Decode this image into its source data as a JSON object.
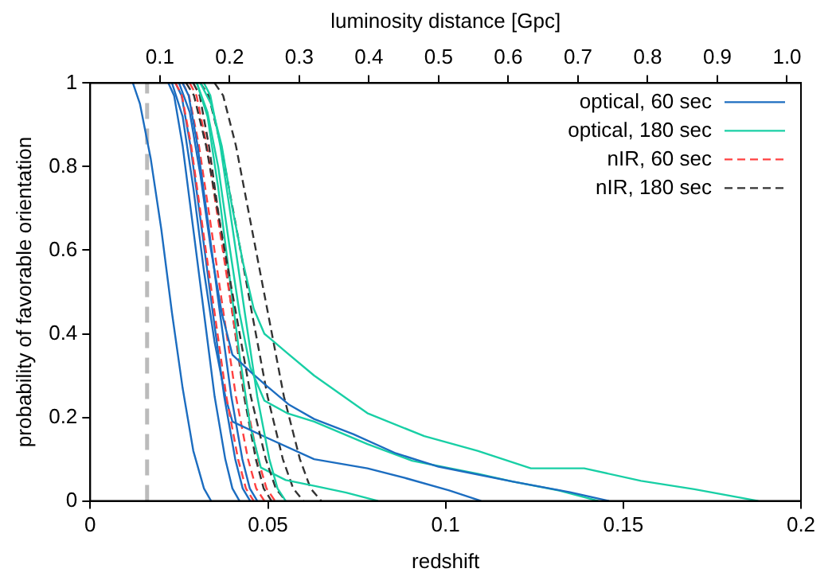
{
  "chart_data": {
    "type": "line",
    "xlabel": "redshift",
    "ylabel": "probability of favorable orientation",
    "x2label": "luminosity distance [Gpc]",
    "xlim": [
      0,
      0.2
    ],
    "xticks": [
      0,
      0.05,
      0.1,
      0.15,
      0.2
    ],
    "ylim": [
      0,
      1
    ],
    "yticks": [
      0,
      0.2,
      0.4,
      0.6,
      0.8,
      1
    ],
    "x2lim": [
      0,
      1.02
    ],
    "x2ticks": [
      0.1,
      0.2,
      0.3,
      0.4,
      0.5,
      0.6,
      0.7,
      0.8,
      0.9,
      {
        "value": 1,
        "label": "1.0"
      }
    ],
    "grid": false,
    "legend": "top right",
    "ref_lines": [
      {
        "axis": "x",
        "value": 0.016,
        "color": "#bbbbbb",
        "line_style": "dashed"
      }
    ],
    "series": [
      {
        "name": "optical, 60 sec",
        "color": "#1c6dc0",
        "line_style": "solid",
        "x": [
          0.022,
          0.0236,
          0.026,
          0.029,
          0.032,
          0.035,
          0.038,
          0.04,
          0.042
        ],
        "values": [
          1,
          0.97,
          0.85,
          0.65,
          0.45,
          0.25,
          0.1,
          0.03,
          0
        ]
      },
      {
        "name": "optical, 180 sec",
        "color": "#18cfa5",
        "line_style": "solid",
        "x": [
          0.032,
          0.0338,
          0.0366,
          0.0401,
          0.0435,
          0.047,
          0.0504,
          0.0527,
          0.055
        ],
        "values": [
          1,
          0.97,
          0.85,
          0.65,
          0.45,
          0.25,
          0.1,
          0.03,
          0
        ]
      },
      {
        "name": "nIR, 60 sec",
        "color": "#ff4040",
        "line_style": "dashed",
        "x": [
          0.024,
          0.0258,
          0.0284,
          0.0317,
          0.035,
          0.0383,
          0.0416,
          0.0438,
          0.046
        ],
        "values": [
          1,
          0.97,
          0.85,
          0.65,
          0.45,
          0.25,
          0.1,
          0.03,
          0
        ]
      },
      {
        "name": "nIR, 180 sec",
        "color": "#333333",
        "line_style": "dashed",
        "x": [
          0.027,
          0.0292,
          0.0326,
          0.0368,
          0.041,
          0.0452,
          0.0494,
          0.0522,
          0.055
        ],
        "values": [
          1,
          0.97,
          0.85,
          0.65,
          0.45,
          0.25,
          0.1,
          0.03,
          0
        ]
      },
      {
        "color": "#1c6dc0",
        "line_style": "solid",
        "x": [
          0.012,
          0.014,
          0.017,
          0.02,
          0.023,
          0.026,
          0.029,
          0.032,
          0.034
        ],
        "values": [
          1,
          0.95,
          0.82,
          0.65,
          0.45,
          0.27,
          0.12,
          0.03,
          0
        ]
      },
      {
        "color": "#1c6dc0",
        "line_style": "solid",
        "x": [
          0.024,
          0.0257,
          0.0282,
          0.0314,
          0.0345,
          0.0377,
          0.0408,
          0.0429,
          0.045
        ],
        "values": [
          1,
          0.97,
          0.85,
          0.65,
          0.45,
          0.25,
          0.1,
          0.03,
          0
        ]
      },
      {
        "color": "#1c6dc0",
        "line_style": "solid",
        "x": [
          0.026,
          0.0277,
          0.0302,
          0.0334,
          0.0365,
          0.0397,
          0.0428,
          0.0449,
          0.047
        ],
        "values": [
          1,
          0.97,
          0.85,
          0.65,
          0.45,
          0.25,
          0.1,
          0.03,
          0
        ]
      },
      {
        "color": "#1c6dc0",
        "line_style": "solid",
        "x": [
          0.025,
          0.028,
          0.031,
          0.034,
          0.037,
          0.04,
          0.045,
          0.049,
          0.056,
          0.063,
          0.074,
          0.086,
          0.098,
          0.119,
          0.135,
          0.146
        ],
        "values": [
          1,
          0.93,
          0.78,
          0.6,
          0.45,
          0.35,
          0.31,
          0.28,
          0.23,
          0.196,
          0.16,
          0.114,
          0.082,
          0.046,
          0.021,
          0
        ]
      },
      {
        "color": "#1c6dc0",
        "line_style": "solid",
        "x": [
          0.023,
          0.026,
          0.029,
          0.032,
          0.035,
          0.038,
          0.04,
          0.049,
          0.063,
          0.078,
          0.089,
          0.101,
          0.11
        ],
        "values": [
          1,
          0.92,
          0.75,
          0.55,
          0.38,
          0.25,
          0.19,
          0.154,
          0.1,
          0.078,
          0.054,
          0.025,
          0
        ]
      },
      {
        "color": "#18cfa5",
        "line_style": "solid",
        "x": [
          0.031,
          0.034,
          0.037,
          0.04,
          0.043,
          0.046,
          0.049,
          0.051,
          0.0554,
          0.063,
          0.078,
          0.094,
          0.109,
          0.124,
          0.139,
          0.155,
          0.17,
          0.188
        ],
        "values": [
          1,
          0.95,
          0.85,
          0.7,
          0.57,
          0.46,
          0.4,
          0.386,
          0.354,
          0.3,
          0.21,
          0.155,
          0.12,
          0.078,
          0.078,
          0.048,
          0.028,
          0
        ]
      },
      {
        "color": "#18cfa5",
        "line_style": "solid",
        "x": [
          0.03,
          0.033,
          0.036,
          0.039,
          0.042,
          0.045,
          0.049,
          0.0554,
          0.063,
          0.078,
          0.0906,
          0.109,
          0.119,
          0.132,
          0.143
        ],
        "values": [
          1,
          0.93,
          0.8,
          0.62,
          0.45,
          0.32,
          0.24,
          0.21,
          0.19,
          0.136,
          0.096,
          0.065,
          0.046,
          0.025,
          0
        ]
      },
      {
        "color": "#18cfa5",
        "line_style": "solid",
        "x": [
          0.03,
          0.033,
          0.036,
          0.039,
          0.042,
          0.045,
          0.048,
          0.055,
          0.063,
          0.072,
          0.081
        ],
        "values": [
          1,
          0.92,
          0.75,
          0.55,
          0.35,
          0.18,
          0.08,
          0.05,
          0.036,
          0.02,
          0
        ]
      },
      {
        "color": "#ff4040",
        "line_style": "dashed",
        "x": [
          0.026,
          0.0278,
          0.0306,
          0.0341,
          0.0375,
          0.041,
          0.0444,
          0.0467,
          0.049
        ],
        "values": [
          1,
          0.97,
          0.85,
          0.65,
          0.45,
          0.25,
          0.1,
          0.03,
          0
        ]
      },
      {
        "color": "#ff4040",
        "line_style": "dashed",
        "x": [
          0.028,
          0.0299,
          0.0328,
          0.0364,
          0.04,
          0.0436,
          0.0472,
          0.0496,
          0.052
        ],
        "values": [
          1,
          0.97,
          0.85,
          0.65,
          0.45,
          0.25,
          0.1,
          0.03,
          0
        ]
      },
      {
        "color": "#333333",
        "line_style": "dashed",
        "x": [
          0.031,
          0.0333,
          0.0368,
          0.0412,
          0.0455,
          0.0499,
          0.0542,
          0.0571,
          0.06
        ],
        "values": [
          1,
          0.97,
          0.85,
          0.65,
          0.45,
          0.25,
          0.1,
          0.03,
          0
        ]
      },
      {
        "color": "#333333",
        "line_style": "dashed",
        "x": [
          0.035,
          0.0374,
          0.041,
          0.0455,
          0.05,
          0.0545,
          0.059,
          0.062,
          0.065
        ],
        "values": [
          1,
          0.97,
          0.85,
          0.65,
          0.45,
          0.25,
          0.1,
          0.03,
          0
        ]
      },
      {
        "color": "#333333",
        "line_style": "dashed",
        "x": [
          0.029,
          0.0308,
          0.0334,
          0.0367,
          0.04,
          0.0433,
          0.0466,
          0.0488,
          0.051
        ],
        "values": [
          1,
          0.97,
          0.85,
          0.65,
          0.45,
          0.25,
          0.1,
          0.03,
          0
        ]
      }
    ]
  }
}
